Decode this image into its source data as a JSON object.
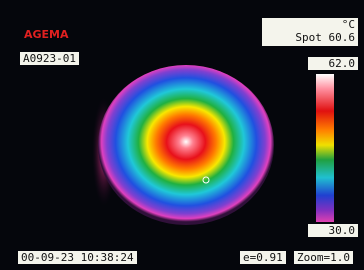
{
  "header": {
    "logo": "AGEMA",
    "image_id": "A0923-01"
  },
  "readout": {
    "unit": "°C",
    "spot_label": "Spot",
    "spot_value": "60.6"
  },
  "scale": {
    "max": "62.0",
    "min": "30.0"
  },
  "footer": {
    "datetime": "00-09-23 10:38:24",
    "emissivity": "e=0.91",
    "zoom": "Zoom=1.0"
  }
}
